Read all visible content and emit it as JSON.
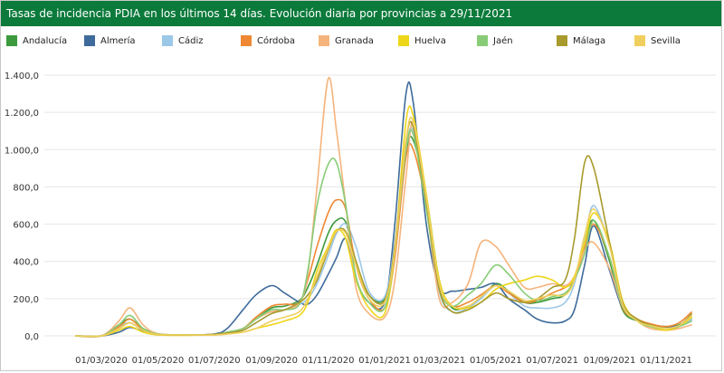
{
  "title": "Tasas de incidencia PDIA en los últimos 14 días. Evolución diaria por provincias a 29/11/2021",
  "colors": {
    "header_bg": "#0b7a3b"
  },
  "chart_data": {
    "type": "line",
    "ylim": [
      0,
      1400
    ],
    "yticks": [
      "0,0",
      "200,0",
      "400,0",
      "600,0",
      "800,0",
      "1.000,0",
      "1.200,0",
      "1.400,0"
    ],
    "xticks": [
      {
        "label": "01/03/2020",
        "date": "2020-03-01"
      },
      {
        "label": "01/05/2020",
        "date": "2020-05-01"
      },
      {
        "label": "01/07/2020",
        "date": "2020-07-01"
      },
      {
        "label": "01/09/2020",
        "date": "2020-09-01"
      },
      {
        "label": "01/11/2020",
        "date": "2020-11-01"
      },
      {
        "label": "01/01/2021",
        "date": "2021-01-01"
      },
      {
        "label": "01/03/2021",
        "date": "2021-03-01"
      },
      {
        "label": "01/05/2021",
        "date": "2021-05-01"
      },
      {
        "label": "01/07/2021",
        "date": "2021-07-01"
      },
      {
        "label": "01/09/2021",
        "date": "2021-09-01"
      },
      {
        "label": "01/11/2021",
        "date": "2021-11-01"
      }
    ],
    "x": [
      "2020-02-01",
      "2020-03-01",
      "2020-03-20",
      "2020-04-01",
      "2020-04-15",
      "2020-05-01",
      "2020-06-01",
      "2020-07-01",
      "2020-07-15",
      "2020-08-01",
      "2020-08-15",
      "2020-09-01",
      "2020-09-15",
      "2020-10-01",
      "2020-10-10",
      "2020-10-20",
      "2020-11-01",
      "2020-11-10",
      "2020-11-20",
      "2020-12-01",
      "2020-12-15",
      "2021-01-01",
      "2021-01-12",
      "2021-01-24",
      "2021-02-01",
      "2021-02-15",
      "2021-03-01",
      "2021-03-15",
      "2021-04-01",
      "2021-04-15",
      "2021-05-01",
      "2021-05-15",
      "2021-06-01",
      "2021-06-15",
      "2021-07-01",
      "2021-07-15",
      "2021-07-25",
      "2021-08-05",
      "2021-08-15",
      "2021-09-01",
      "2021-09-15",
      "2021-10-01",
      "2021-10-15",
      "2021-11-01",
      "2021-11-15",
      "2021-11-29"
    ],
    "series": [
      {
        "name": "Andalucía",
        "color": "#3c9a3c",
        "values": [
          0,
          0,
          60,
          90,
          40,
          10,
          5,
          8,
          20,
          40,
          90,
          150,
          160,
          190,
          260,
          380,
          550,
          620,
          610,
          400,
          220,
          200,
          450,
          980,
          1050,
          750,
          300,
          150,
          160,
          200,
          280,
          240,
          180,
          180,
          200,
          220,
          300,
          500,
          620,
          400,
          140,
          80,
          60,
          45,
          60,
          100
        ]
      },
      {
        "name": "Almería",
        "color": "#3e6b9b",
        "values": [
          0,
          0,
          20,
          45,
          25,
          8,
          5,
          10,
          40,
          140,
          220,
          270,
          230,
          180,
          170,
          220,
          330,
          420,
          520,
          300,
          180,
          180,
          600,
          1300,
          1250,
          600,
          260,
          240,
          250,
          260,
          280,
          200,
          140,
          90,
          70,
          80,
          140,
          380,
          590,
          350,
          150,
          90,
          60,
          50,
          55,
          90
        ]
      },
      {
        "name": "Cádiz",
        "color": "#9cc8e8",
        "values": [
          0,
          0,
          50,
          70,
          30,
          8,
          5,
          5,
          15,
          30,
          70,
          120,
          140,
          170,
          200,
          280,
          430,
          550,
          600,
          480,
          240,
          210,
          500,
          1000,
          1100,
          720,
          240,
          130,
          150,
          200,
          270,
          230,
          160,
          150,
          150,
          180,
          280,
          520,
          700,
          480,
          170,
          80,
          55,
          40,
          55,
          90
        ]
      },
      {
        "name": "Córdoba",
        "color": "#ee8833",
        "values": [
          0,
          0,
          50,
          90,
          35,
          8,
          5,
          8,
          18,
          40,
          100,
          160,
          170,
          180,
          300,
          480,
          660,
          730,
          680,
          380,
          200,
          150,
          420,
          960,
          1000,
          700,
          260,
          160,
          180,
          220,
          270,
          230,
          180,
          190,
          230,
          260,
          300,
          470,
          600,
          420,
          150,
          90,
          65,
          50,
          70,
          130
        ]
      },
      {
        "name": "Granada",
        "color": "#f5b47c",
        "values": [
          0,
          0,
          80,
          150,
          60,
          12,
          6,
          8,
          20,
          40,
          90,
          130,
          140,
          180,
          330,
          800,
          1380,
          1100,
          700,
          260,
          120,
          100,
          300,
          850,
          1150,
          700,
          200,
          180,
          280,
          500,
          480,
          380,
          260,
          260,
          280,
          270,
          320,
          460,
          500,
          360,
          160,
          80,
          40,
          30,
          40,
          60
        ]
      },
      {
        "name": "Huelva",
        "color": "#eed61a",
        "values": [
          0,
          0,
          30,
          50,
          20,
          5,
          3,
          5,
          10,
          20,
          40,
          60,
          80,
          110,
          180,
          350,
          480,
          570,
          520,
          300,
          150,
          120,
          460,
          1150,
          1180,
          760,
          300,
          160,
          150,
          180,
          250,
          280,
          300,
          320,
          300,
          260,
          320,
          500,
          660,
          500,
          190,
          80,
          50,
          30,
          50,
          100
        ]
      },
      {
        "name": "Jaén",
        "color": "#88cc77",
        "values": [
          0,
          0,
          60,
          110,
          40,
          10,
          5,
          8,
          20,
          40,
          90,
          140,
          140,
          170,
          350,
          700,
          920,
          930,
          700,
          320,
          180,
          150,
          460,
          1000,
          1080,
          680,
          260,
          160,
          220,
          280,
          380,
          330,
          230,
          190,
          210,
          230,
          300,
          440,
          620,
          420,
          160,
          80,
          50,
          40,
          50,
          80
        ]
      },
      {
        "name": "Málaga",
        "color": "#a89a2c",
        "values": [
          0,
          0,
          40,
          70,
          30,
          8,
          5,
          8,
          15,
          30,
          70,
          120,
          140,
          180,
          220,
          300,
          460,
          560,
          560,
          400,
          220,
          190,
          480,
          1050,
          1120,
          720,
          250,
          130,
          140,
          180,
          230,
          200,
          180,
          200,
          260,
          300,
          520,
          930,
          900,
          500,
          180,
          90,
          60,
          40,
          55,
          120
        ]
      },
      {
        "name": "Sevilla",
        "color": "#f0cf5e",
        "values": [
          0,
          0,
          40,
          70,
          30,
          8,
          5,
          5,
          10,
          20,
          40,
          80,
          100,
          130,
          200,
          320,
          470,
          560,
          550,
          380,
          200,
          180,
          460,
          1050,
          1150,
          740,
          280,
          160,
          160,
          210,
          270,
          240,
          190,
          200,
          220,
          220,
          300,
          540,
          680,
          480,
          170,
          80,
          55,
          40,
          55,
          110
        ]
      }
    ]
  }
}
